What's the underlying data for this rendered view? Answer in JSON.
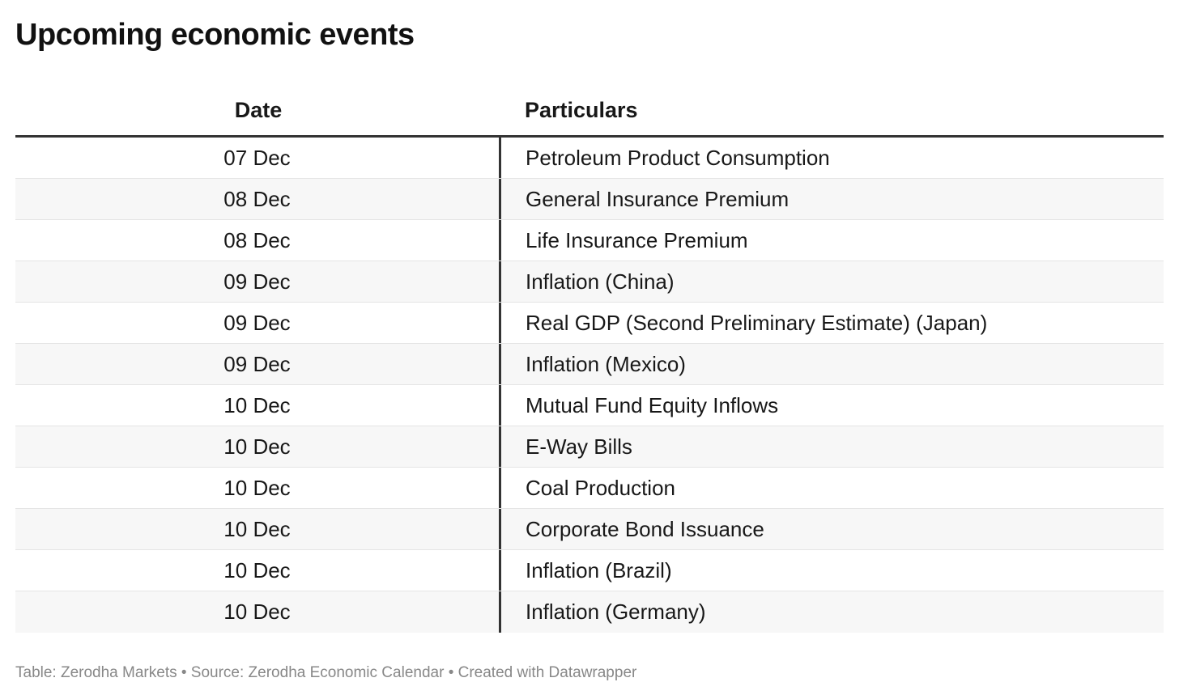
{
  "title": "Upcoming economic events",
  "chart_data": {
    "type": "table",
    "title": "Upcoming economic events",
    "columns": [
      "Date",
      "Particulars"
    ],
    "rows": [
      {
        "date": "07 Dec",
        "particulars": "Petroleum Product Consumption"
      },
      {
        "date": "08 Dec",
        "particulars": "General Insurance Premium"
      },
      {
        "date": "08 Dec",
        "particulars": "Life Insurance Premium"
      },
      {
        "date": "09 Dec",
        "particulars": "Inflation (China)"
      },
      {
        "date": "09 Dec",
        "particulars": "Real GDP (Second Preliminary Estimate) (Japan)"
      },
      {
        "date": "09 Dec",
        "particulars": "Inflation (Mexico)"
      },
      {
        "date": "10 Dec",
        "particulars": "Mutual Fund Equity Inflows"
      },
      {
        "date": "10 Dec",
        "particulars": "E-Way Bills"
      },
      {
        "date": "10 Dec",
        "particulars": "Coal Production"
      },
      {
        "date": "10 Dec",
        "particulars": "Corporate Bond Issuance"
      },
      {
        "date": "10 Dec",
        "particulars": "Inflation (Brazil)"
      },
      {
        "date": "10 Dec",
        "particulars": "Inflation (Germany)"
      }
    ]
  },
  "footer": "Table: Zerodha Markets • Source: Zerodha Economic Calendar • Created with Datawrapper"
}
